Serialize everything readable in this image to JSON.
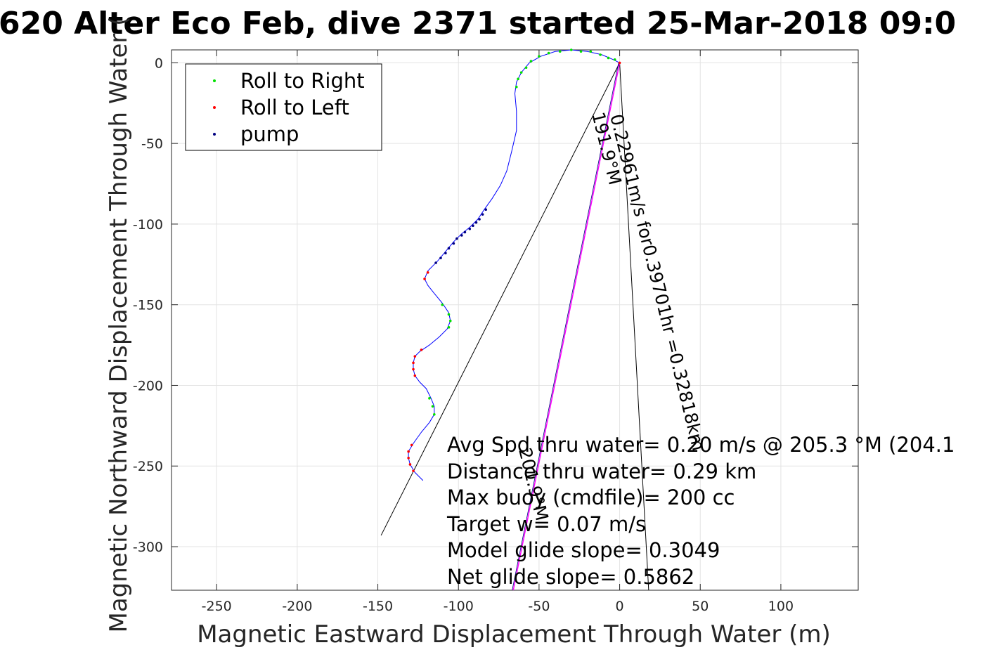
{
  "chart_data": {
    "type": "line",
    "title": "620 Alter Eco Feb, dive 2371 started 25-Mar-2018 09:0",
    "xlabel": "Magnetic Eastward Displacement Through Water (m)",
    "ylabel": "Magnetic Northward Displacement Through Water (",
    "xlim": [
      -278,
      148
    ],
    "ylim": [
      -327,
      8
    ],
    "xticks": [
      -250,
      -200,
      -150,
      -100,
      -50,
      0,
      50,
      100
    ],
    "yticks": [
      0,
      -50,
      -100,
      -150,
      -200,
      -250,
      -300
    ],
    "grid": true,
    "legend_position": "top-left",
    "colors": {
      "track": "#0000ff",
      "roll_right": "#00e000",
      "roll_left": "#ff0000",
      "pump": "#000080",
      "model_line": "#ff00ff",
      "ref_line": "#000000"
    },
    "legend": [
      {
        "label": "Roll to Right",
        "color": "#00e000"
      },
      {
        "label": "Roll to Left",
        "color": "#ff0000"
      },
      {
        "label": "pump",
        "color": "#000080"
      }
    ],
    "track": [
      [
        -122,
        -259
      ],
      [
        -127,
        -254
      ],
      [
        -130,
        -249
      ],
      [
        -131,
        -245
      ],
      [
        -131,
        -241
      ],
      [
        -128,
        -236
      ],
      [
        -123,
        -229
      ],
      [
        -118,
        -223
      ],
      [
        -115,
        -218
      ],
      [
        -115,
        -213
      ],
      [
        -117,
        -208
      ],
      [
        -120,
        -202
      ],
      [
        -124,
        -198
      ],
      [
        -127,
        -194
      ],
      [
        -128,
        -190
      ],
      [
        -128,
        -186
      ],
      [
        -127,
        -182
      ],
      [
        -124,
        -179
      ],
      [
        -118,
        -175
      ],
      [
        -112,
        -170
      ],
      [
        -107,
        -165
      ],
      [
        -105,
        -160
      ],
      [
        -106,
        -155
      ],
      [
        -110,
        -149
      ],
      [
        -115,
        -143
      ],
      [
        -119,
        -138
      ],
      [
        -121,
        -134
      ],
      [
        -119,
        -129
      ],
      [
        -113,
        -123
      ],
      [
        -108,
        -117
      ],
      [
        -103,
        -111
      ],
      [
        -98,
        -106
      ],
      [
        -93,
        -102
      ],
      [
        -88,
        -97
      ],
      [
        -84,
        -91
      ],
      [
        -79,
        -84
      ],
      [
        -74,
        -76
      ],
      [
        -70,
        -67
      ],
      [
        -67,
        -55
      ],
      [
        -64,
        -42
      ],
      [
        -64,
        -30
      ],
      [
        -65,
        -19
      ],
      [
        -64,
        -12
      ],
      [
        -61,
        -6
      ],
      [
        -56,
        0
      ],
      [
        -49,
        4
      ],
      [
        -40,
        7
      ],
      [
        -30,
        8
      ],
      [
        -20,
        7
      ],
      [
        -11,
        5
      ],
      [
        -4,
        2
      ],
      [
        0,
        0
      ]
    ],
    "roll_right_points": [
      [
        -115,
        -218
      ],
      [
        -116,
        -213
      ],
      [
        -118,
        -208
      ],
      [
        -106,
        -164
      ],
      [
        -105,
        -160
      ],
      [
        -106,
        -156
      ],
      [
        -110,
        -150
      ],
      [
        -64,
        -15
      ],
      [
        -63,
        -10
      ],
      [
        -61,
        -6
      ],
      [
        -58,
        -3
      ],
      [
        -55,
        1
      ],
      [
        -50,
        4
      ],
      [
        -44,
        6
      ],
      [
        -37,
        7
      ],
      [
        -30,
        8
      ],
      [
        -24,
        7
      ],
      [
        -18,
        7
      ],
      [
        -12,
        5
      ],
      [
        -7,
        3
      ],
      [
        -3,
        2
      ]
    ],
    "roll_left_points": [
      [
        -128,
        -253
      ],
      [
        -130,
        -249
      ],
      [
        -131,
        -245
      ],
      [
        -131,
        -241
      ],
      [
        -129,
        -237
      ],
      [
        -127,
        -194
      ],
      [
        -128,
        -190
      ],
      [
        -128,
        -186
      ],
      [
        -127,
        -182
      ],
      [
        -123,
        -178
      ],
      [
        -121,
        -134
      ],
      [
        -119,
        -130
      ],
      [
        0,
        0
      ]
    ],
    "pump_points": [
      [
        -114,
        -124
      ],
      [
        -111,
        -121
      ],
      [
        -108,
        -118
      ],
      [
        -106,
        -115
      ],
      [
        -103,
        -112
      ],
      [
        -101,
        -109
      ],
      [
        -98,
        -107
      ],
      [
        -96,
        -105
      ],
      [
        -93,
        -103
      ],
      [
        -91,
        -101
      ],
      [
        -89,
        -99
      ],
      [
        -87,
        -97
      ],
      [
        -85,
        -94
      ],
      [
        -83,
        -91
      ]
    ],
    "model_line": [
      [
        0,
        0
      ],
      [
        -66,
        -327
      ]
    ],
    "ref_lines": [
      [
        [
          0,
          0
        ],
        [
          -148,
          -293
        ]
      ],
      [
        [
          0,
          0
        ],
        [
          18,
          -327
        ]
      ]
    ],
    "model_line_label": "0.22961m/s for0.39701hr =0.32818km",
    "model_line_heading": "191.9°M",
    "model_line_heading_2": "201.9°M",
    "info": [
      "Avg Spd thru water=  0.20 m/s @ 205.3 °M (204.1",
      "Distance thru water=  0.29 km",
      "Max buoy (cmdfile)= 200 cc",
      "Target w= 0.07 m/s",
      "Model glide slope= 0.3049",
      "Net glide slope= 0.5862"
    ]
  }
}
